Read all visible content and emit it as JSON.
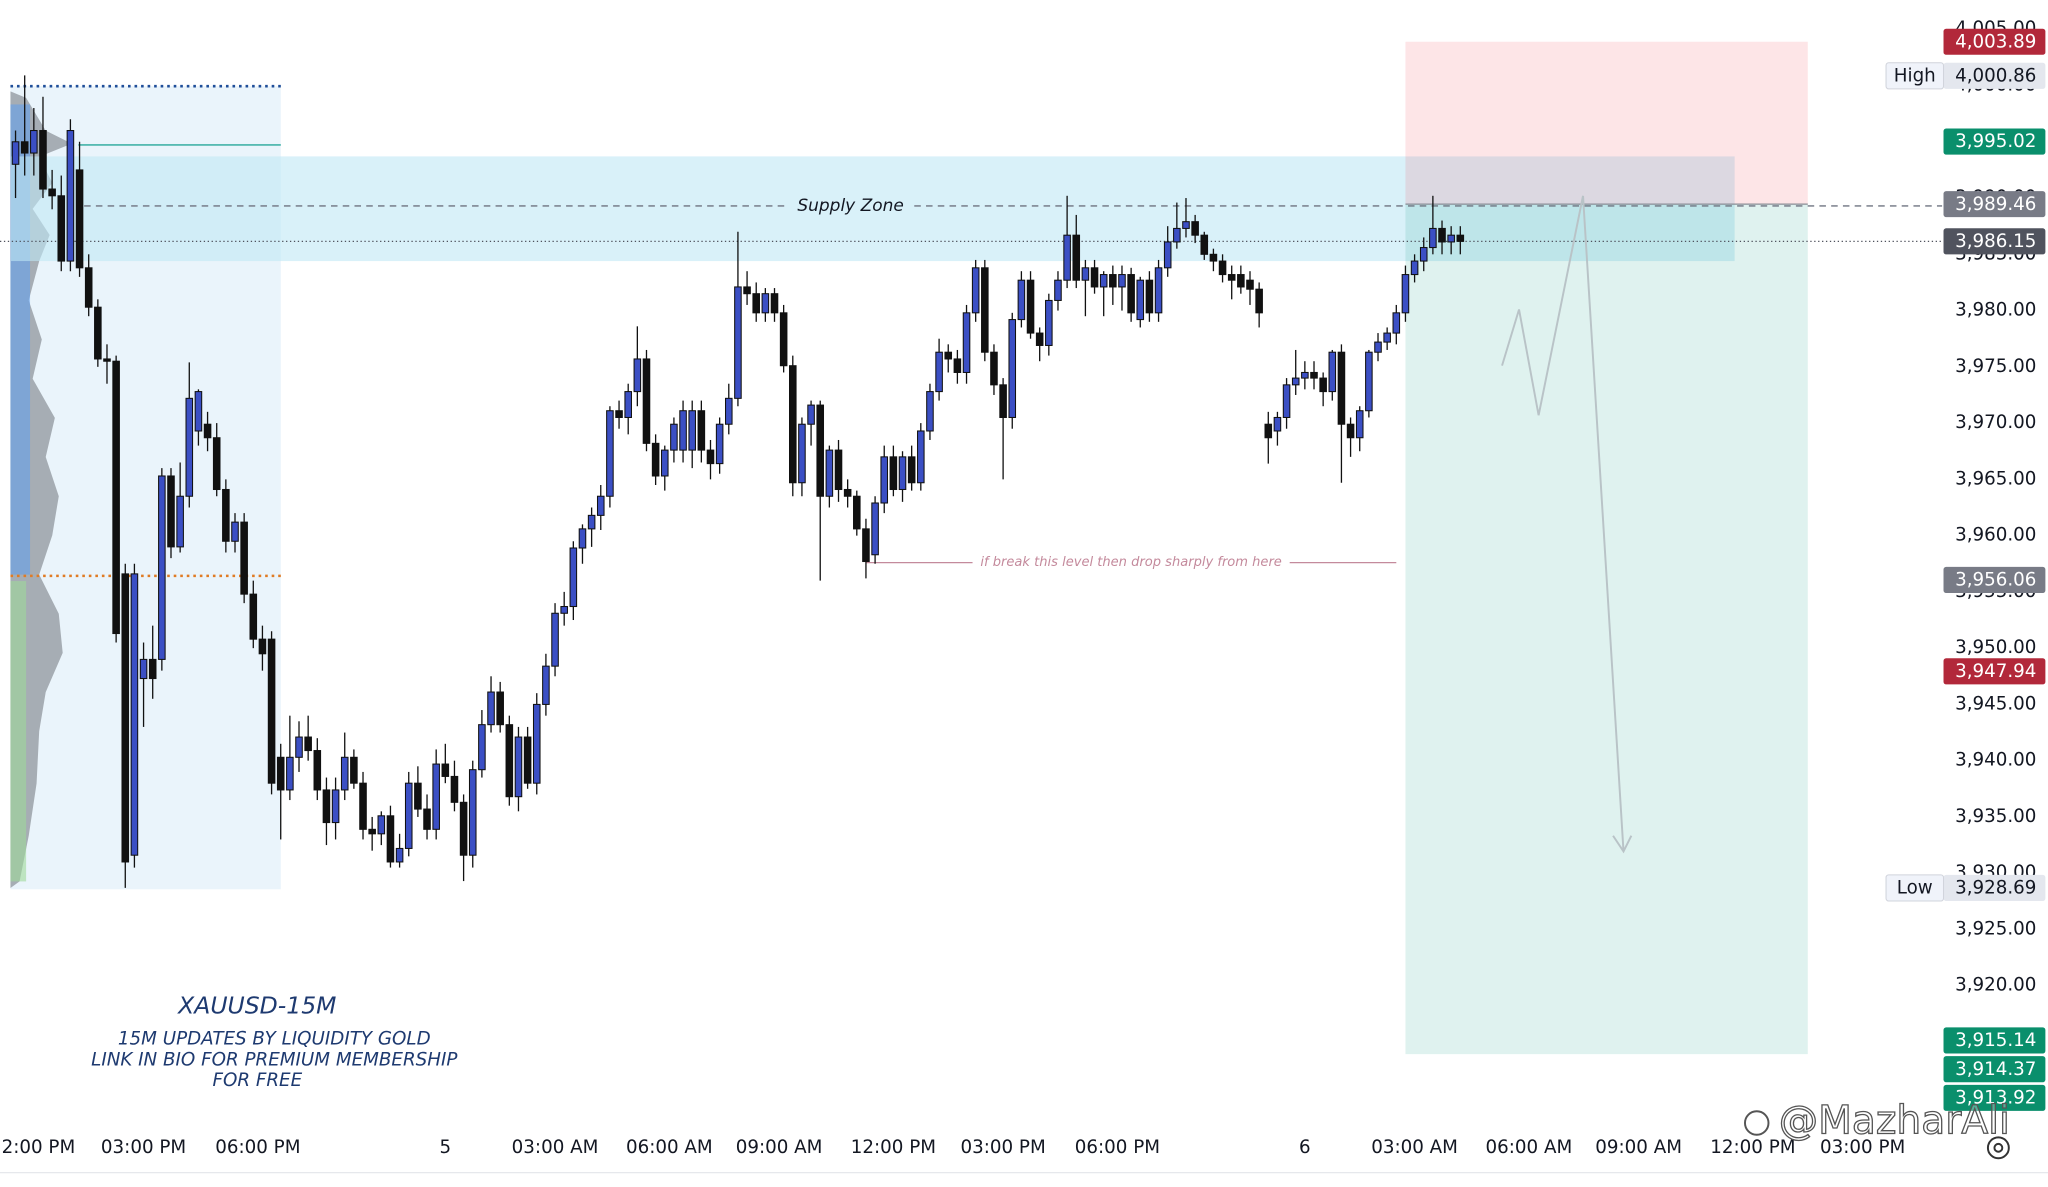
{
  "chart_data": {
    "type": "candlestick",
    "title": "XAUUSD-15M",
    "subtitle_lines": [
      "15M UPDATES BY LIQUIDITY GOLD",
      "LINK IN BIO FOR PREMIUM MEMBERSHIP",
      "FOR FREE"
    ],
    "watermark": "@MazharAli",
    "up_color": "#3b4fc4",
    "down_color": "#111111",
    "xlim": [
      -1.7,
      210.7
    ],
    "ylim": [
      3907.8,
      4007.6
    ],
    "xticks": [
      {
        "value": 2.5,
        "label": "2:00 PM"
      },
      {
        "value": 14,
        "label": "03:00 PM"
      },
      {
        "value": 26.5,
        "label": "06:00 PM"
      },
      {
        "value": 47,
        "label": "5"
      },
      {
        "value": 59,
        "label": "03:00 AM"
      },
      {
        "value": 71.5,
        "label": "06:00 AM"
      },
      {
        "value": 83.5,
        "label": "09:00 AM"
      },
      {
        "value": 96,
        "label": "12:00 PM"
      },
      {
        "value": 108,
        "label": "03:00 PM"
      },
      {
        "value": 120.5,
        "label": "06:00 PM"
      },
      {
        "value": 141,
        "label": "6"
      },
      {
        "value": 153,
        "label": "03:00 AM"
      },
      {
        "value": 165.5,
        "label": "06:00 AM"
      },
      {
        "value": 177.5,
        "label": "09:00 AM"
      },
      {
        "value": 190,
        "label": "12:00 PM"
      },
      {
        "value": 202,
        "label": "03:00 PM"
      }
    ],
    "yticks": [
      {
        "value": 3915,
        "label": "3,915.00"
      },
      {
        "value": 3920,
        "label": "3,920.00"
      },
      {
        "value": 3925,
        "label": "3,925.00"
      },
      {
        "value": 3930,
        "label": "3,930.00"
      },
      {
        "value": 3935,
        "label": "3,935.00"
      },
      {
        "value": 3940,
        "label": "3,940.00"
      },
      {
        "value": 3945,
        "label": "3,945.00"
      },
      {
        "value": 3950,
        "label": "3,950.00"
      },
      {
        "value": 3955,
        "label": "3,955.00"
      },
      {
        "value": 3960,
        "label": "3,960.00"
      },
      {
        "value": 3965,
        "label": "3,965.00"
      },
      {
        "value": 3970,
        "label": "3,970.00"
      },
      {
        "value": 3975,
        "label": "3,975.00"
      },
      {
        "value": 3980,
        "label": "3,980.00"
      },
      {
        "value": 3985,
        "label": "3,985.00"
      },
      {
        "value": 3990,
        "label": "3,990.00"
      },
      {
        "value": 3995,
        "label": "3,995.00"
      },
      {
        "value": 4000,
        "label": "4,000.00"
      },
      {
        "value": 4005,
        "label": "4,005.00"
      }
    ],
    "open": [
      3993.0,
      3995.0,
      3994.0,
      3996.0,
      3990.8,
      3990.2,
      3984.4,
      3992.5,
      3983.8,
      3980.3,
      3975.7,
      3975.5,
      3956.6,
      3931.6,
      3947.3,
      3949.0,
      3949.0,
      3965.3,
      3959.0,
      3963.5,
      3969.3,
      3969.9,
      3968.7,
      3964.1,
      3959.5,
      3961.2,
      3954.8,
      3950.8,
      3950.8,
      3940.3,
      3937.4,
      3940.3,
      3942.1,
      3940.9,
      3937.4,
      3934.5,
      3937.4,
      3940.3,
      3938.0,
      3933.9,
      3933.5,
      3935.1,
      3931.0,
      3932.2,
      3938.0,
      3935.7,
      3933.9,
      3939.7,
      3938.6,
      3936.3,
      3931.6,
      3939.2,
      3943.2,
      3946.1,
      3943.2,
      3936.8,
      3942.1,
      3938.0,
      3945.0,
      3948.4,
      3953.1,
      3953.7,
      3958.9,
      3960.6,
      3961.8,
      3963.5,
      3971.1,
      3970.5,
      3972.8,
      3975.7,
      3968.2,
      3965.3,
      3967.6,
      3967.6,
      3967.6,
      3971.1,
      3967.6,
      3966.4,
      3969.9,
      3972.2,
      3982.1,
      3981.5,
      3979.8,
      3981.5,
      3979.8,
      3975.1,
      3964.7,
      3969.9,
      3971.6,
      3963.5,
      3967.6,
      3964.1,
      3963.5,
      3960.6,
      3958.3,
      3962.9,
      3967.0,
      3964.1,
      3967.0,
      3964.7,
      3969.3,
      3972.8,
      3976.3,
      3975.7,
      3974.5,
      3979.8,
      3983.8,
      3976.3,
      3973.4,
      3970.5,
      3979.2,
      3982.7,
      3978.0,
      3976.9,
      3980.9,
      3982.7,
      3986.7,
      3982.7,
      3983.8,
      3982.1,
      3983.2,
      3982.1,
      3983.2,
      3979.2,
      3982.7,
      3979.8,
      3983.8,
      3986.1,
      3987.3,
      3987.9,
      3986.7,
      3985.0,
      3984.4,
      3983.2,
      3983.2,
      3982.7,
      3981.9,
      3969.9,
      3969.3,
      3970.5,
      3973.4,
      3974.0,
      3974.5,
      3974.0,
      3972.8,
      3976.3,
      3969.9,
      3968.7,
      3971.1,
      3976.3,
      3977.2,
      3978.0,
      3979.8,
      3983.2,
      3984.4,
      3985.6,
      3987.3,
      3986.1,
      3986.7
    ],
    "high": [
      3996.0,
      4000.9,
      3998.0,
      3999.0,
      3992.5,
      3992.0,
      3997.0,
      3995.0,
      3985.0,
      3981.0,
      3977.0,
      3976.0,
      3957.5,
      3957.5,
      3950.5,
      3952.0,
      3966.0,
      3966.0,
      3966.5,
      3975.4,
      3973.0,
      3971.0,
      3970.0,
      3965.0,
      3962.0,
      3962.0,
      3956.0,
      3952.0,
      3951.5,
      3941.5,
      3944.0,
      3943.5,
      3944.0,
      3942.0,
      3938.5,
      3938.5,
      3942.5,
      3941.0,
      3939.0,
      3935.0,
      3935.5,
      3936.0,
      3933.5,
      3939.0,
      3939.5,
      3937.0,
      3941.0,
      3941.5,
      3940.0,
      3937.0,
      3940.0,
      3944.5,
      3947.5,
      3947.0,
      3944.0,
      3943.0,
      3943.0,
      3946.0,
      3949.5,
      3954.0,
      3955.0,
      3959.5,
      3961.0,
      3962.5,
      3964.5,
      3971.5,
      3972.0,
      3973.5,
      3978.6,
      3976.5,
      3969.0,
      3968.0,
      3970.5,
      3972.0,
      3972.0,
      3972.0,
      3968.5,
      3970.5,
      3973.5,
      3987.0,
      3983.5,
      3982.5,
      3982.0,
      3982.0,
      3980.5,
      3976.0,
      3970.5,
      3972.0,
      3972.0,
      3968.0,
      3968.5,
      3965.0,
      3964.0,
      3961.5,
      3963.5,
      3968.0,
      3968.0,
      3967.5,
      3968.0,
      3970.0,
      3973.5,
      3977.5,
      3977.0,
      3976.5,
      3980.5,
      3984.5,
      3984.5,
      3977.0,
      3974.0,
      3979.8,
      3983.5,
      3983.5,
      3978.5,
      3981.5,
      3983.5,
      3990.2,
      3988.5,
      3984.5,
      3984.5,
      3983.5,
      3984.0,
      3984.0,
      3983.8,
      3983.0,
      3983.5,
      3984.5,
      3987.5,
      3989.6,
      3990.0,
      3988.5,
      3987.0,
      3985.5,
      3985.0,
      3984.0,
      3984.0,
      3983.5,
      3982.5,
      3971.0,
      3971.0,
      3974.0,
      3976.5,
      3975.5,
      3975.5,
      3974.5,
      3976.5,
      3977.0,
      3970.5,
      3971.5,
      3976.5,
      3978.0,
      3978.5,
      3980.5,
      3984.0,
      3985.0,
      3986.5,
      3990.2,
      3988.0,
      3987.5,
      3987.5
    ],
    "low": [
      3990.0,
      3992.0,
      3992.0,
      3990.0,
      3989.0,
      3983.5,
      3983.5,
      3983.0,
      3979.5,
      3975.0,
      3973.5,
      3950.5,
      3928.7,
      3930.5,
      3943.0,
      3945.5,
      3948.0,
      3958.0,
      3958.5,
      3962.5,
      3968.0,
      3967.5,
      3963.5,
      3958.5,
      3958.5,
      3954.0,
      3950.0,
      3948.0,
      3937.0,
      3933.0,
      3936.5,
      3939.0,
      3940.0,
      3936.5,
      3932.5,
      3933.0,
      3936.5,
      3937.5,
      3933.0,
      3932.0,
      3932.5,
      3930.5,
      3930.5,
      3931.5,
      3935.0,
      3933.0,
      3933.0,
      3938.0,
      3935.5,
      3929.3,
      3930.5,
      3938.5,
      3942.5,
      3942.5,
      3936.0,
      3935.5,
      3937.5,
      3937.0,
      3944.0,
      3947.5,
      3952.0,
      3952.5,
      3957.5,
      3959.0,
      3960.5,
      3962.5,
      3969.5,
      3969.0,
      3971.5,
      3967.5,
      3964.5,
      3964.0,
      3966.5,
      3966.5,
      3966.0,
      3966.5,
      3965.0,
      3965.5,
      3969.0,
      3971.5,
      3980.5,
      3979.0,
      3979.0,
      3979.0,
      3974.5,
      3963.5,
      3963.5,
      3968.0,
      3956.0,
      3962.5,
      3963.0,
      3962.5,
      3960.0,
      3956.2,
      3957.5,
      3962.0,
      3963.5,
      3963.0,
      3964.0,
      3964.0,
      3968.5,
      3972.0,
      3974.5,
      3973.5,
      3973.5,
      3979.0,
      3975.5,
      3972.5,
      3965.0,
      3969.5,
      3978.5,
      3977.5,
      3975.5,
      3976.0,
      3980.0,
      3982.0,
      3982.0,
      3979.5,
      3981.5,
      3979.5,
      3980.5,
      3980.0,
      3979.0,
      3978.5,
      3979.0,
      3979.0,
      3983.0,
      3985.5,
      3986.5,
      3986.0,
      3984.5,
      3983.5,
      3982.5,
      3981.0,
      3981.5,
      3980.5,
      3978.5,
      3966.4,
      3968.0,
      3969.5,
      3972.5,
      3973.0,
      3973.0,
      3971.5,
      3972.0,
      3964.7,
      3967.0,
      3967.5,
      3970.5,
      3975.5,
      3976.5,
      3977.0,
      3979.0,
      3982.5,
      3983.5,
      3985.0,
      3985.0,
      3985.0,
      3985.0
    ],
    "close": [
      3995.0,
      3994.0,
      3996.0,
      3990.8,
      3990.2,
      3984.4,
      3996.0,
      3983.8,
      3980.3,
      3975.7,
      3975.5,
      3951.3,
      3931.0,
      3956.6,
      3949.0,
      3947.3,
      3965.3,
      3959.0,
      3963.5,
      3972.2,
      3972.8,
      3968.7,
      3964.1,
      3959.5,
      3961.2,
      3954.8,
      3950.8,
      3949.5,
      3938.0,
      3937.4,
      3940.3,
      3942.1,
      3940.9,
      3937.4,
      3934.5,
      3937.4,
      3940.3,
      3938.0,
      3933.9,
      3933.5,
      3935.1,
      3931.0,
      3932.2,
      3938.0,
      3935.7,
      3933.9,
      3939.7,
      3938.6,
      3936.3,
      3931.6,
      3939.2,
      3943.2,
      3946.1,
      3943.2,
      3936.8,
      3942.1,
      3938.0,
      3945.0,
      3948.4,
      3953.1,
      3953.7,
      3958.9,
      3960.6,
      3961.8,
      3963.5,
      3971.1,
      3970.5,
      3972.8,
      3975.7,
      3968.2,
      3965.3,
      3967.6,
      3969.9,
      3971.1,
      3971.1,
      3967.6,
      3966.4,
      3969.9,
      3972.2,
      3982.1,
      3981.5,
      3979.8,
      3981.5,
      3979.8,
      3975.1,
      3964.7,
      3969.9,
      3971.6,
      3963.5,
      3967.6,
      3964.1,
      3963.5,
      3960.6,
      3957.7,
      3962.9,
      3967.0,
      3964.1,
      3967.0,
      3964.7,
      3969.3,
      3972.8,
      3976.3,
      3975.7,
      3974.5,
      3979.8,
      3983.8,
      3976.3,
      3973.4,
      3970.5,
      3979.2,
      3982.7,
      3978.0,
      3976.9,
      3980.9,
      3982.7,
      3986.7,
      3982.7,
      3983.8,
      3982.1,
      3983.2,
      3982.1,
      3983.2,
      3979.8,
      3982.7,
      3979.8,
      3983.8,
      3986.1,
      3987.3,
      3987.9,
      3986.7,
      3985.0,
      3984.4,
      3983.2,
      3982.7,
      3982.1,
      3981.9,
      3979.8,
      3968.7,
      3970.5,
      3973.4,
      3974.0,
      3974.5,
      3974.0,
      3972.8,
      3976.3,
      3969.9,
      3968.7,
      3971.1,
      3976.3,
      3977.2,
      3978.0,
      3979.8,
      3983.2,
      3984.4,
      3985.6,
      3987.3,
      3986.1,
      3986.7,
      3986.15
    ],
    "supply_zone": {
      "label": "Supply Zone",
      "high": 3993.7,
      "low": 3984.4,
      "line": 3989.3,
      "start": -0.5,
      "end": 188,
      "line_start": 7.5,
      "color": "#bfe8f5"
    },
    "annotation": {
      "text": "if break this level then drop sharply from here",
      "value": 3957.6,
      "start": 93,
      "end": 151,
      "color": "#c48a9c"
    },
    "position": {
      "entry": 3989.46,
      "stop": 4003.89,
      "target": 3913.92,
      "start": 152,
      "end": 196,
      "stop_color": "#f23645",
      "target_color": "#089981"
    },
    "price_labels": [
      {
        "value": 4003.89,
        "label": "4,003.89",
        "color": "#b2283a",
        "text_color": "#ffffff"
      },
      {
        "value": 4000.86,
        "label": "4,000.86",
        "tag": "High",
        "color": "#e4e7ee",
        "text_color": "#131722"
      },
      {
        "value": 3995.02,
        "label": "3,995.02",
        "color": "#0a8f6c",
        "text_color": "#ffffff"
      },
      {
        "value": 3989.46,
        "label": "3,989.46",
        "color": "#787b86",
        "text_color": "#ffffff"
      },
      {
        "value": 3986.15,
        "label": "3,986.15",
        "color": "#50535e",
        "text_color": "#ffffff",
        "line": true
      },
      {
        "value": 3956.06,
        "label": "3,956.06",
        "color": "#787b86",
        "text_color": "#ffffff"
      },
      {
        "value": 3947.94,
        "label": "3,947.94",
        "color": "#b2283a",
        "text_color": "#ffffff"
      },
      {
        "value": 3928.69,
        "label": "3,928.69",
        "tag": "Low",
        "color": "#e4e7ee",
        "text_color": "#131722"
      },
      {
        "value": 3915.14,
        "label": "3,915.14",
        "color": "#0a8f6c",
        "text_color": "#ffffff"
      },
      {
        "value": 3914.37,
        "label": "3,914.37",
        "color": "#0a8f6c",
        "text_color": "#ffffff"
      },
      {
        "value": 3913.92,
        "label": "3,913.92",
        "color": "#0a8f6c",
        "text_color": "#ffffff"
      }
    ]
  }
}
